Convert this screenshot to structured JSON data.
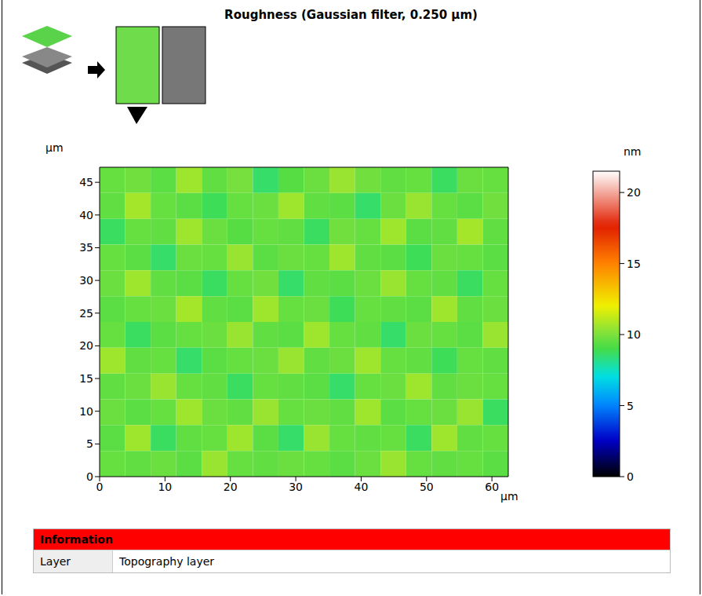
{
  "chart_data": {
    "type": "heatmap",
    "title": "Roughness (Gaussian filter, 0.250 µm)",
    "x_label": "µm",
    "y_label": "µm",
    "xlim": [
      0,
      62.5
    ],
    "ylim": [
      0,
      47.3
    ],
    "xticks": [
      0,
      10,
      20,
      30,
      40,
      50,
      60
    ],
    "yticks": [
      0,
      5,
      10,
      15,
      20,
      25,
      30,
      35,
      40,
      45
    ],
    "cells": [
      [
        9.6,
        9.8,
        9.4,
        10.6,
        9.5,
        9.9,
        8.6,
        9.3,
        9.7,
        10.5,
        9.8,
        9.5,
        9.6,
        8.7,
        9.7,
        9.6
      ],
      [
        9.5,
        10.7,
        9.6,
        9.4,
        8.8,
        9.6,
        9.7,
        10.6,
        9.5,
        9.4,
        8.6,
        9.7,
        10.5,
        9.6,
        9.4,
        9.8
      ],
      [
        8.7,
        9.6,
        9.5,
        10.6,
        9.7,
        9.3,
        9.6,
        9.5,
        8.7,
        9.8,
        9.6,
        10.6,
        9.4,
        9.5,
        10.7,
        9.5
      ],
      [
        9.6,
        9.4,
        8.6,
        9.7,
        9.6,
        10.5,
        9.4,
        9.7,
        9.6,
        10.6,
        9.5,
        9.4,
        8.8,
        9.7,
        9.6,
        9.4
      ],
      [
        9.7,
        10.6,
        9.5,
        9.4,
        8.7,
        9.6,
        9.8,
        8.6,
        9.5,
        9.4,
        9.7,
        10.5,
        9.6,
        9.5,
        8.7,
        9.6
      ],
      [
        9.4,
        9.6,
        9.7,
        10.7,
        9.5,
        9.4,
        10.6,
        9.6,
        9.7,
        8.8,
        9.6,
        9.5,
        9.4,
        10.6,
        9.5,
        9.7
      ],
      [
        9.6,
        8.7,
        9.4,
        9.6,
        9.7,
        10.5,
        9.5,
        9.4,
        10.6,
        9.6,
        9.5,
        8.6,
        9.7,
        9.6,
        9.4,
        10.5
      ],
      [
        10.6,
        9.5,
        9.6,
        8.6,
        9.4,
        9.6,
        9.7,
        10.5,
        9.5,
        9.7,
        10.6,
        9.6,
        9.5,
        8.8,
        9.6,
        9.5
      ],
      [
        9.5,
        9.7,
        10.5,
        9.6,
        9.5,
        8.7,
        9.6,
        9.5,
        9.4,
        8.6,
        9.6,
        9.7,
        10.6,
        9.5,
        9.7,
        9.6
      ],
      [
        9.7,
        9.4,
        9.6,
        10.6,
        9.7,
        9.5,
        10.5,
        9.6,
        9.7,
        9.5,
        10.6,
        9.4,
        9.6,
        9.7,
        10.5,
        8.7
      ],
      [
        9.4,
        10.6,
        8.7,
        9.5,
        9.6,
        10.6,
        9.4,
        8.6,
        10.5,
        9.6,
        9.5,
        9.6,
        8.7,
        10.6,
        9.5,
        9.6
      ],
      [
        9.6,
        9.5,
        9.7,
        9.4,
        10.5,
        9.6,
        9.5,
        9.7,
        9.6,
        9.4,
        9.7,
        10.5,
        9.6,
        9.5,
        9.6,
        9.4
      ]
    ],
    "colorbar": {
      "label": "nm",
      "range": [
        0,
        21.5
      ],
      "ticks": [
        0,
        5,
        10,
        15,
        20
      ]
    }
  },
  "info": {
    "header": "Information",
    "rows": [
      [
        "Layer",
        "Topography layer"
      ]
    ]
  }
}
